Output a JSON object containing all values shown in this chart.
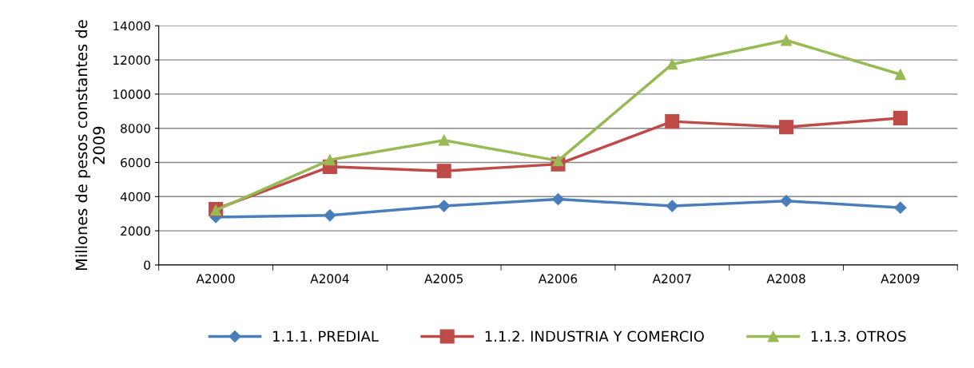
{
  "chart_data": {
    "type": "line",
    "ylabel": "Millones de pesos constantes de\n2009",
    "categories": [
      "A2000",
      "A2004",
      "A2005",
      "A2006",
      "A2007",
      "A2008",
      "A2009"
    ],
    "series": [
      {
        "name": "1.1.1. PREDIAL",
        "color": "#4a7ebb",
        "marker": "diamond",
        "values": [
          2800,
          2900,
          3450,
          3850,
          3450,
          3750,
          3350
        ]
      },
      {
        "name": "1.1.2. INDUSTRIA Y COMERCIO",
        "color": "#be4b48",
        "marker": "square",
        "values": [
          3270,
          5750,
          5500,
          5900,
          8400,
          8070,
          8600
        ]
      },
      {
        "name": "1.1.3. OTROS",
        "color": "#98b954",
        "marker": "triangle",
        "values": [
          3200,
          6150,
          7300,
          6100,
          11750,
          13150,
          11150
        ]
      }
    ],
    "ylim": [
      0,
      14000
    ],
    "yticks": [
      0,
      2000,
      4000,
      6000,
      8000,
      10000,
      12000,
      14000
    ],
    "grid": "y",
    "legend": "bottom",
    "line_style": "solid"
  }
}
